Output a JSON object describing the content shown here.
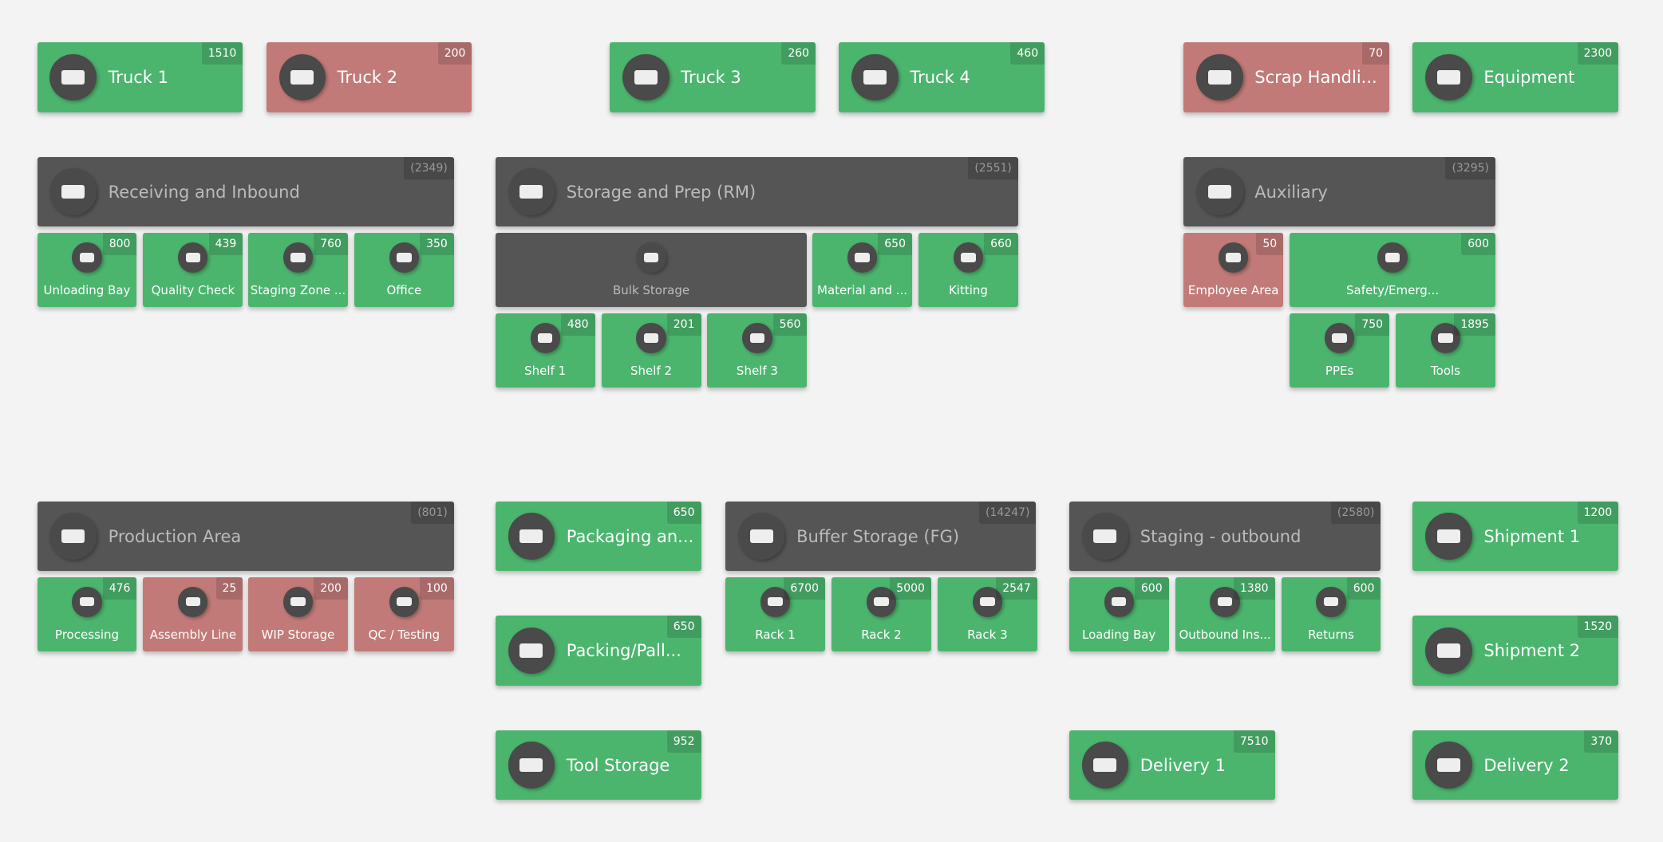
{
  "tiles": [
    {
      "label": "Truck 1",
      "count": "1510",
      "status": "ok"
    },
    {
      "label": "Truck 2",
      "count": "200",
      "status": "alert"
    },
    {
      "label": "Truck 3",
      "count": "260",
      "status": "ok"
    },
    {
      "label": "Truck 4",
      "count": "460",
      "status": "ok"
    },
    {
      "label": "Scrap Handli...",
      "count": "70",
      "status": "alert"
    },
    {
      "label": "Equipment",
      "count": "2300",
      "status": "ok"
    },
    {
      "label": "Receiving and Inbound",
      "count": "(2349)",
      "status": "group"
    },
    {
      "label": "Unloading Bay",
      "count": "800",
      "status": "ok"
    },
    {
      "label": "Quality Check",
      "count": "439",
      "status": "ok"
    },
    {
      "label": "Staging Zone ...",
      "count": "760",
      "status": "ok"
    },
    {
      "label": "Office",
      "count": "350",
      "status": "ok"
    },
    {
      "label": "Storage and Prep (RM)",
      "count": "(2551)",
      "status": "group"
    },
    {
      "label": "Bulk Storage",
      "status": "group"
    },
    {
      "label": "Material and ...",
      "count": "650",
      "status": "ok"
    },
    {
      "label": "Kitting",
      "count": "660",
      "status": "ok"
    },
    {
      "label": "Shelf 1",
      "count": "480",
      "status": "ok"
    },
    {
      "label": "Shelf 2",
      "count": "201",
      "status": "ok"
    },
    {
      "label": "Shelf 3",
      "count": "560",
      "status": "ok"
    },
    {
      "label": "Auxiliary",
      "count": "(3295)",
      "status": "group"
    },
    {
      "label": "Employee Area",
      "count": "50",
      "status": "alert"
    },
    {
      "label": "Safety/Emerg...",
      "count": "600",
      "status": "ok"
    },
    {
      "label": "PPEs",
      "count": "750",
      "status": "ok"
    },
    {
      "label": "Tools",
      "count": "1895",
      "status": "ok"
    },
    {
      "label": "Production Area",
      "count": "(801)",
      "status": "group"
    },
    {
      "label": "Processing",
      "count": "476",
      "status": "ok"
    },
    {
      "label": "Assembly Line",
      "count": "25",
      "status": "alert"
    },
    {
      "label": "WIP Storage",
      "count": "200",
      "status": "alert"
    },
    {
      "label": "QC / Testing",
      "count": "100",
      "status": "alert"
    },
    {
      "label": "Packaging an...",
      "count": "650",
      "status": "ok"
    },
    {
      "label": "Packing/Pall...",
      "count": "650",
      "status": "ok"
    },
    {
      "label": "Tool Storage",
      "count": "952",
      "status": "ok"
    },
    {
      "label": "Buffer Storage (FG)",
      "count": "(14247)",
      "status": "group"
    },
    {
      "label": "Rack 1",
      "count": "6700",
      "status": "ok"
    },
    {
      "label": "Rack 2",
      "count": "5000",
      "status": "ok"
    },
    {
      "label": "Rack 3",
      "count": "2547",
      "status": "ok"
    },
    {
      "label": "Staging - outbound",
      "count": "(2580)",
      "status": "group"
    },
    {
      "label": "Loading Bay",
      "count": "600",
      "status": "ok"
    },
    {
      "label": "Outbound Ins...",
      "count": "1380",
      "status": "ok"
    },
    {
      "label": "Returns",
      "count": "600",
      "status": "ok"
    },
    {
      "label": "Shipment 1",
      "count": "1200",
      "status": "ok"
    },
    {
      "label": "Shipment 2",
      "count": "1520",
      "status": "ok"
    },
    {
      "label": "Delivery 1",
      "count": "7510",
      "status": "ok"
    },
    {
      "label": "Delivery 2",
      "count": "370",
      "status": "ok"
    }
  ]
}
